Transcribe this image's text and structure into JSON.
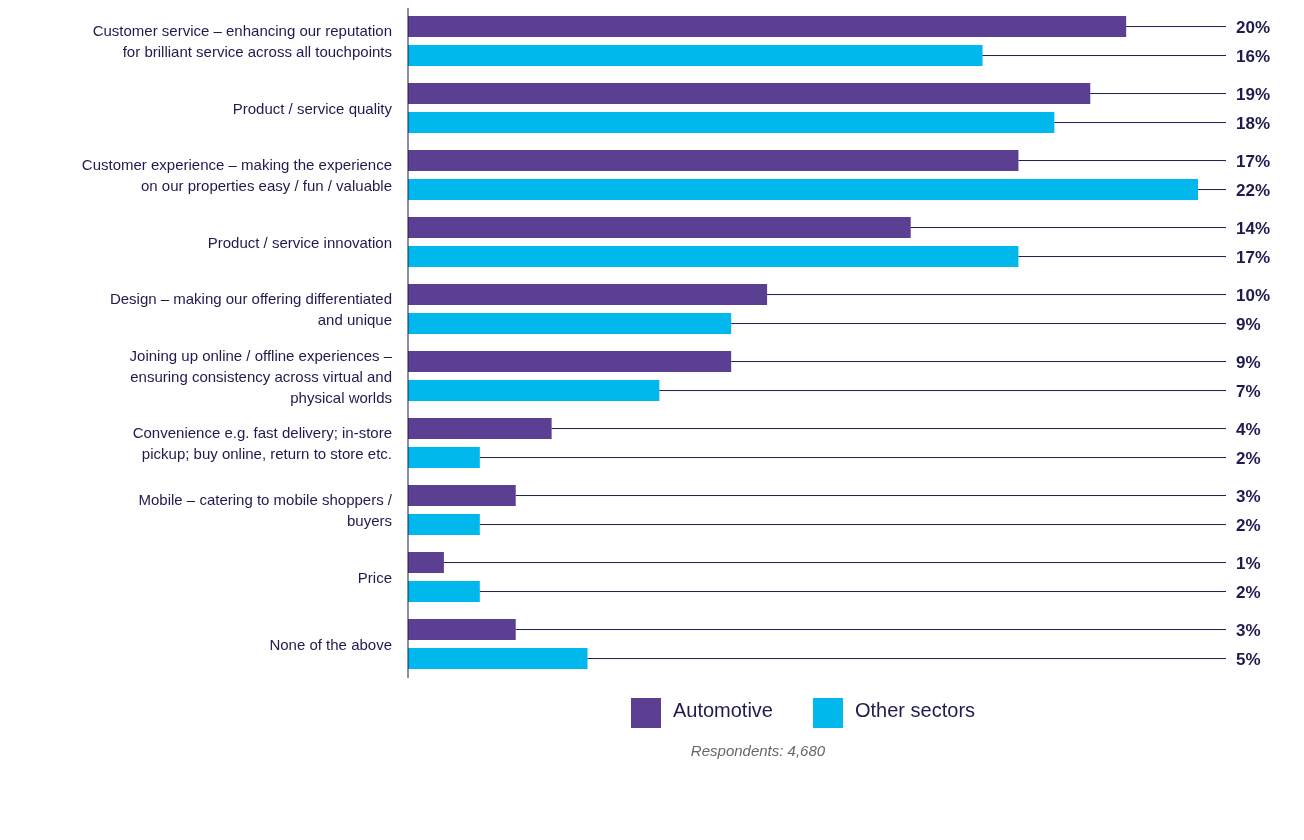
{
  "chart_data": {
    "type": "bar",
    "orientation": "horizontal",
    "categories": [
      "Customer service – enhancing our reputation for brilliant service across all touchpoints",
      "Product / service quality",
      "Customer experience – making the experience on our properties easy / fun / valuable",
      "Product / service innovation",
      "Design – making our offering differentiated and unique",
      "Joining up online / offline experiences – ensuring consistency across virtual and physical worlds",
      "Convenience e.g. fast delivery; in-store pickup; buy online, return to store etc.",
      "Mobile – catering to mobile shoppers / buyers",
      "Price",
      "None of the above"
    ],
    "series": [
      {
        "name": "Automotive",
        "color": "#5b3f93",
        "values": [
          20,
          19,
          17,
          14,
          10,
          9,
          4,
          3,
          1,
          3
        ],
        "value_labels": [
          "20%",
          "19%",
          "17%",
          "14%",
          "10%",
          "9%",
          "4%",
          "3%",
          "1%",
          "3%"
        ]
      },
      {
        "name": "Other sectors",
        "color": "#00b8ec",
        "values": [
          16,
          18,
          22,
          17,
          9,
          7,
          2,
          2,
          2,
          5
        ],
        "value_labels": [
          "16%",
          "18%",
          "22%",
          "17%",
          "9%",
          "7%",
          "2%",
          "2%",
          "2%",
          "5%"
        ]
      }
    ],
    "legend": "bottom",
    "annotations": [
      "Respondents: 4,680"
    ]
  }
}
